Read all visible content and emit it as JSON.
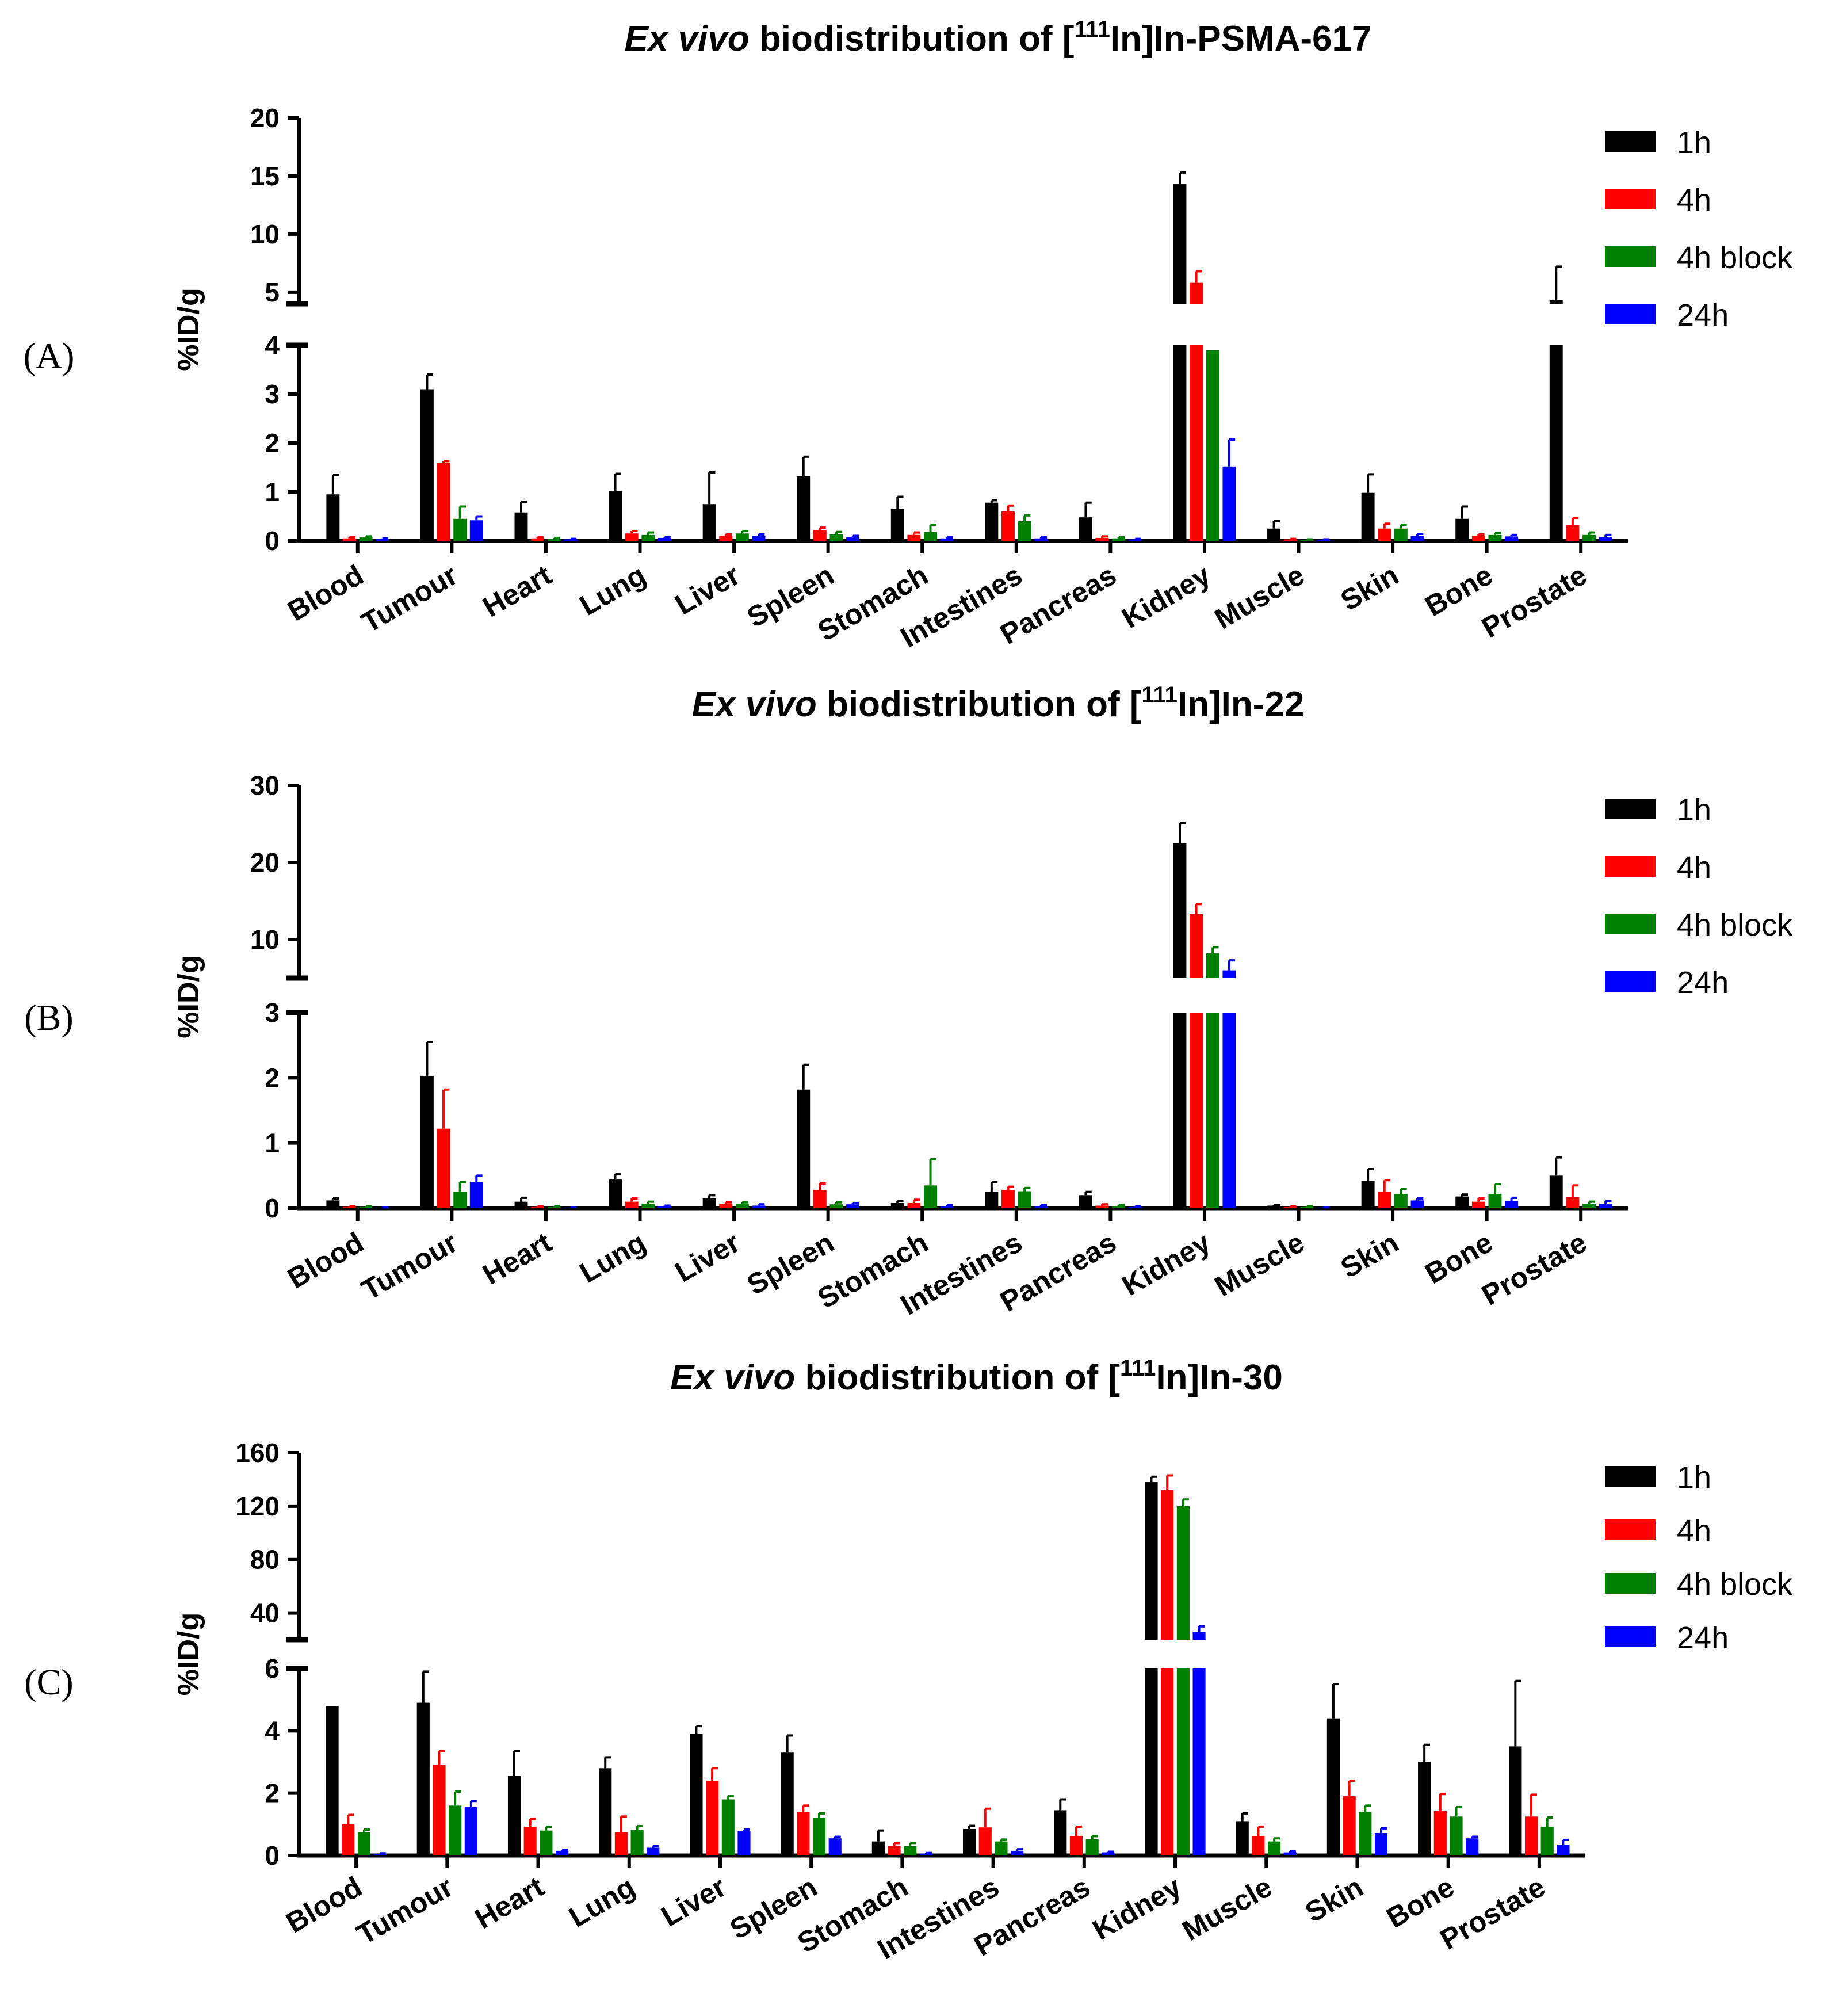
{
  "figure": {
    "categories": [
      "Blood",
      "Tumour",
      "Heart",
      "Lung",
      "Liver",
      "Spleen",
      "Stomach",
      "Intestines",
      "Pancreas",
      "Kidney",
      "Muscle",
      "Skin",
      "Bone",
      "Prostate"
    ],
    "legend": [
      {
        "label": "1h",
        "color": "#000000"
      },
      {
        "label": "4h",
        "color": "#ff0000"
      },
      {
        "label": "4h block",
        "color": "#008000"
      },
      {
        "label": "24h",
        "color": "#0000ff"
      }
    ]
  },
  "chart_data": [
    {
      "panel_label": "(A)",
      "type": "bar",
      "title_italic": "Ex vivo",
      "title_rest_a": " biodistribution of [",
      "title_sup": "111",
      "title_rest_b": "In]In-PSMA-617",
      "ylabel": "%ID/g",
      "axis_break": true,
      "lower_range": [
        0,
        4
      ],
      "upper_range": [
        4,
        20
      ],
      "lower_ticks": [
        0,
        1,
        2,
        3,
        4
      ],
      "upper_ticks": [
        5,
        10,
        15,
        20
      ],
      "categories": [
        "Blood",
        "Tumour",
        "Heart",
        "Lung",
        "Liver",
        "Spleen",
        "Stomach",
        "Intestines",
        "Pancreas",
        "Kidney",
        "Muscle",
        "Skin",
        "Bone",
        "Prostate"
      ],
      "series": [
        {
          "name": "1h",
          "values": [
            0.95,
            3.1,
            0.58,
            1.02,
            0.75,
            1.32,
            0.65,
            0.78,
            0.48,
            14.3,
            0.25,
            0.98,
            0.45,
            4.3
          ],
          "errors": [
            0.4,
            0.3,
            0.22,
            0.35,
            0.65,
            0.4,
            0.25,
            0.05,
            0.3,
            1.0,
            0.15,
            0.38,
            0.25,
            2.9
          ]
        },
        {
          "name": "4h",
          "values": [
            0.05,
            1.6,
            0.05,
            0.15,
            0.1,
            0.22,
            0.12,
            0.6,
            0.06,
            5.8,
            0.03,
            0.25,
            0.1,
            0.32
          ],
          "errors": [
            0.02,
            0.03,
            0.02,
            0.05,
            0.03,
            0.05,
            0.05,
            0.12,
            0.03,
            1.0,
            0.01,
            0.1,
            0.03,
            0.15
          ]
        },
        {
          "name": "4h block",
          "values": [
            0.07,
            0.45,
            0.04,
            0.12,
            0.15,
            0.13,
            0.18,
            0.4,
            0.05,
            3.9,
            0.02,
            0.25,
            0.12,
            0.12
          ],
          "errors": [
            0.02,
            0.25,
            0.02,
            0.05,
            0.05,
            0.05,
            0.15,
            0.12,
            0.02,
            0.3,
            0.01,
            0.08,
            0.04,
            0.05
          ]
        },
        {
          "name": "24h",
          "values": [
            0.04,
            0.42,
            0.03,
            0.06,
            0.1,
            0.07,
            0.05,
            0.05,
            0.03,
            1.52,
            0.02,
            0.1,
            0.09,
            0.08
          ],
          "errors": [
            0.01,
            0.08,
            0.01,
            0.02,
            0.03,
            0.03,
            0.02,
            0.02,
            0.01,
            0.55,
            0.01,
            0.04,
            0.03,
            0.04
          ]
        }
      ]
    },
    {
      "panel_label": "(B)",
      "type": "bar",
      "title_italic": "Ex vivo",
      "title_rest_a": " biodistribution of [",
      "title_sup": "111",
      "title_rest_b": "In]In-22",
      "ylabel": "%ID/g",
      "axis_break": true,
      "lower_range": [
        0,
        3
      ],
      "upper_range": [
        5,
        30
      ],
      "lower_ticks": [
        0,
        1,
        2,
        3
      ],
      "upper_ticks": [
        10,
        20,
        30
      ],
      "categories": [
        "Blood",
        "Tumour",
        "Heart",
        "Lung",
        "Liver",
        "Spleen",
        "Stomach",
        "Intestines",
        "Pancreas",
        "Kidney",
        "Muscle",
        "Skin",
        "Bone",
        "Prostate"
      ],
      "series": [
        {
          "name": "1h",
          "values": [
            0.12,
            2.03,
            0.1,
            0.44,
            0.15,
            1.82,
            0.08,
            0.25,
            0.2,
            22.5,
            0.04,
            0.42,
            0.18,
            0.5
          ],
          "errors": [
            0.03,
            0.52,
            0.06,
            0.08,
            0.05,
            0.38,
            0.03,
            0.15,
            0.05,
            2.6,
            0.01,
            0.18,
            0.03,
            0.28
          ]
        },
        {
          "name": "4h",
          "values": [
            0.02,
            1.22,
            0.02,
            0.1,
            0.07,
            0.28,
            0.08,
            0.28,
            0.04,
            13.3,
            0.02,
            0.25,
            0.1,
            0.17
          ],
          "errors": [
            0.01,
            0.6,
            0.01,
            0.05,
            0.02,
            0.1,
            0.05,
            0.05,
            0.02,
            1.3,
            0.01,
            0.18,
            0.05,
            0.18
          ]
        },
        {
          "name": "4h block",
          "values": [
            0.02,
            0.25,
            0.02,
            0.07,
            0.07,
            0.06,
            0.35,
            0.26,
            0.03,
            8.2,
            0.02,
            0.22,
            0.22,
            0.07
          ],
          "errors": [
            0.01,
            0.15,
            0.01,
            0.03,
            0.02,
            0.03,
            0.4,
            0.05,
            0.02,
            0.8,
            0.01,
            0.08,
            0.15,
            0.03
          ]
        },
        {
          "name": "24h",
          "values": [
            0.01,
            0.4,
            0.01,
            0.03,
            0.04,
            0.06,
            0.03,
            0.03,
            0.02,
            6.0,
            0.01,
            0.12,
            0.11,
            0.07
          ],
          "errors": [
            0.005,
            0.1,
            0.005,
            0.01,
            0.02,
            0.02,
            0.02,
            0.02,
            0.01,
            1.3,
            0.005,
            0.03,
            0.05,
            0.04
          ]
        }
      ]
    },
    {
      "panel_label": "(C)",
      "type": "bar",
      "title_italic": "Ex vivo",
      "title_rest_a": " biodistribution of [",
      "title_sup": "111",
      "title_rest_b": "In]In-30",
      "ylabel": "%ID/g",
      "axis_break": true,
      "lower_range": [
        0,
        6
      ],
      "upper_range": [
        20,
        160
      ],
      "lower_ticks": [
        0,
        2,
        4,
        6
      ],
      "upper_ticks": [
        40,
        80,
        120,
        160
      ],
      "categories": [
        "Blood",
        "Tumour",
        "Heart",
        "Lung",
        "Liver",
        "Spleen",
        "Stomach",
        "Intestines",
        "Pancreas",
        "Kidney",
        "Muscle",
        "Skin",
        "Bone",
        "Prostate"
      ],
      "series": [
        {
          "name": "1h",
          "values": [
            4.8,
            4.9,
            2.55,
            2.8,
            3.9,
            3.3,
            0.45,
            0.85,
            1.45,
            138,
            1.1,
            4.4,
            3.0,
            3.5
          ],
          "errors": [
            1.3,
            1.0,
            0.8,
            0.35,
            0.25,
            0.55,
            0.35,
            0.1,
            0.35,
            4.0,
            0.25,
            1.1,
            0.55,
            2.1
          ]
        },
        {
          "name": "4h",
          "values": [
            1.0,
            2.9,
            0.92,
            0.75,
            2.4,
            1.4,
            0.3,
            0.9,
            0.62,
            132,
            0.62,
            1.9,
            1.42,
            1.25
          ],
          "errors": [
            0.3,
            0.45,
            0.25,
            0.5,
            0.4,
            0.2,
            0.1,
            0.6,
            0.3,
            11.0,
            0.3,
            0.5,
            0.55,
            0.7
          ]
        },
        {
          "name": "4h block",
          "values": [
            0.75,
            1.6,
            0.8,
            0.82,
            1.8,
            1.2,
            0.3,
            0.45,
            0.52,
            120,
            0.45,
            1.4,
            1.25,
            0.92
          ],
          "errors": [
            0.08,
            0.45,
            0.12,
            0.12,
            0.1,
            0.15,
            0.1,
            0.06,
            0.1,
            5.0,
            0.1,
            0.2,
            0.3,
            0.3
          ]
        },
        {
          "name": "24h",
          "values": [
            0.05,
            1.55,
            0.15,
            0.25,
            0.78,
            0.55,
            0.06,
            0.15,
            0.1,
            26,
            0.1,
            0.72,
            0.55,
            0.35
          ],
          "errors": [
            0.02,
            0.2,
            0.03,
            0.05,
            0.05,
            0.05,
            0.02,
            0.05,
            0.02,
            4.0,
            0.03,
            0.15,
            0.05,
            0.15
          ]
        }
      ]
    }
  ]
}
